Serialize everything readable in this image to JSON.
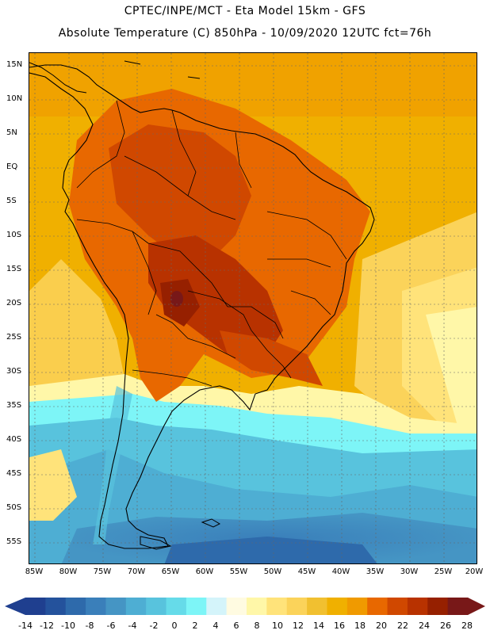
{
  "header": {
    "line1": "CPTEC/INPE/MCT -  Eta Model 15km - GFS",
    "line2": "Absolute Temperature (C) 850hPa - 10/09/2020 12UTC fct=76h"
  },
  "map": {
    "field": "Absolute Temperature (C) 850hPa",
    "region": "South America",
    "lat_range": [
      -58,
      17
    ],
    "lon_range": [
      -86,
      -20
    ],
    "lat_labels": [
      "15N",
      "10N",
      "5N",
      "EQ",
      "5S",
      "10S",
      "15S",
      "20S",
      "25S",
      "30S",
      "35S",
      "40S",
      "45S",
      "50S",
      "55S"
    ],
    "lon_labels": [
      "85W",
      "80W",
      "75W",
      "70W",
      "65W",
      "60W",
      "55W",
      "50W",
      "45W",
      "40W",
      "35W",
      "30W",
      "25W",
      "20W"
    ]
  },
  "colorbar": {
    "labels": [
      "-14",
      "-12",
      "-10",
      "-8",
      "-6",
      "-4",
      "-2",
      "0",
      "2",
      "4",
      "6",
      "8",
      "10",
      "12",
      "14",
      "16",
      "18",
      "20",
      "22",
      "24",
      "26",
      "28"
    ],
    "colors": [
      "#1f3f8f",
      "#24529c",
      "#2e6aab",
      "#3a7fba",
      "#4595c4",
      "#4eaed3",
      "#58c3dd",
      "#66dbe9",
      "#7df5f7",
      "#d4f4fa",
      "#fffbe1",
      "#fff7a8",
      "#ffe37a",
      "#fbd35a",
      "#f1c030",
      "#f0b000",
      "#f09a00",
      "#e86800",
      "#d04800",
      "#b83200",
      "#962000",
      "#781818"
    ],
    "low_color": "#1f3f8f",
    "high_color": "#781818"
  }
}
